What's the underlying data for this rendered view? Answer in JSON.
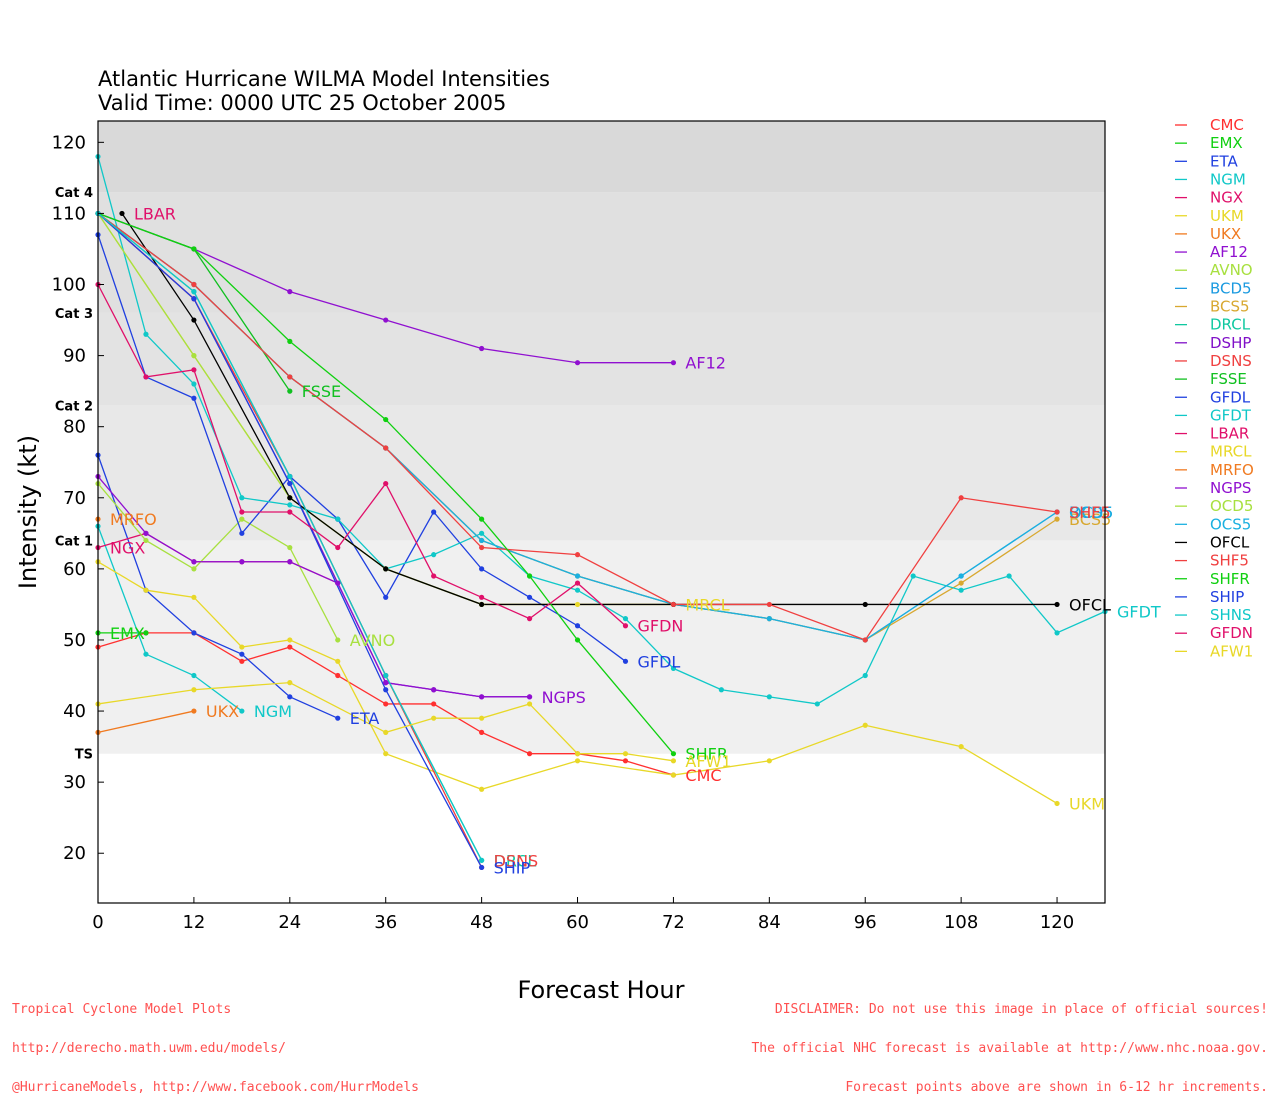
{
  "title": "Atlantic Hurricane WILMA Model Intensities",
  "subtitle": "Valid Time: 0000 UTC 25 October 2005",
  "footer": {
    "left": [
      "Tropical Cyclone Model Plots",
      "http://derecho.math.uwm.edu/models/",
      "@HurricaneModels, http://www.facebook.com/HurrModels"
    ],
    "right": [
      "DISCLAIMER: Do not use this image in place of official sources!",
      "The official NHC forecast is available at http://www.nhc.noaa.gov.",
      "Forecast points above are shown in 6-12 hr increments."
    ]
  },
  "chart_data": {
    "type": "line",
    "xlabel": "Forecast Hour",
    "ylabel": "Intensity (kt)",
    "xlim": [
      0,
      126
    ],
    "ylim": [
      13,
      123
    ],
    "xticks": [
      0,
      12,
      24,
      36,
      48,
      60,
      72,
      84,
      96,
      108,
      120
    ],
    "yticks": [
      20,
      30,
      40,
      50,
      60,
      70,
      80,
      90,
      100,
      110,
      120
    ],
    "category_bands": [
      {
        "label": "TS",
        "from": 34,
        "to": 64,
        "color": "#f0f0f0"
      },
      {
        "label": "Cat 1",
        "from": 64,
        "to": 83,
        "color": "#e8e8e8"
      },
      {
        "label": "Cat 2",
        "from": 83,
        "to": 96,
        "color": "#e3e3e3"
      },
      {
        "label": "Cat 3",
        "from": 96,
        "to": 113,
        "color": "#e0e0e0"
      },
      {
        "label": "Cat 4",
        "from": 113,
        "to": 123,
        "color": "#d9d9d9"
      }
    ],
    "series": [
      {
        "name": "CMC",
        "color": "#ff3030",
        "x": [
          0,
          6,
          12,
          18,
          24,
          30,
          36,
          42,
          48,
          54,
          60,
          66,
          72
        ],
        "y": [
          49,
          51,
          51,
          47,
          49,
          45,
          41,
          41,
          37,
          34,
          34,
          33,
          31
        ],
        "label": "CMC",
        "label_at": [
          72,
          31
        ]
      },
      {
        "name": "EMX",
        "color": "#10d010",
        "x": [
          0,
          6
        ],
        "y": [
          51,
          51
        ],
        "label": "EMX",
        "label_at": [
          0,
          51
        ]
      },
      {
        "name": "ETA",
        "color": "#2040e0",
        "x": [
          0,
          6,
          12,
          18,
          24,
          30
        ],
        "y": [
          76,
          57,
          51,
          48,
          42,
          39
        ],
        "label": "ETA",
        "label_at": [
          30,
          39
        ]
      },
      {
        "name": "NGM",
        "color": "#10c8c8",
        "x": [
          0,
          6,
          12,
          18
        ],
        "y": [
          66,
          48,
          45,
          40
        ],
        "label": "NGM",
        "label_at": [
          18,
          40
        ]
      },
      {
        "name": "NGX",
        "color": "#e0106a",
        "x": [
          0,
          6,
          12,
          18,
          24,
          30
        ],
        "y": [
          63,
          65,
          61,
          61,
          61,
          58
        ],
        "label": "NGX",
        "label_at": [
          0,
          63
        ]
      },
      {
        "name": "UKM",
        "color": "#e8d828",
        "x": [
          0,
          6,
          12,
          18,
          24,
          30,
          36,
          48,
          60,
          72,
          84,
          96,
          108,
          120
        ],
        "y": [
          61,
          57,
          56,
          49,
          50,
          47,
          34,
          29,
          33,
          31,
          33,
          38,
          35,
          27
        ],
        "label": "UKM",
        "label_at": [
          120,
          27
        ]
      },
      {
        "name": "UKX",
        "color": "#f07a20",
        "x": [
          0,
          12
        ],
        "y": [
          37,
          40
        ],
        "label": "UKX",
        "label_at": [
          12,
          40
        ]
      },
      {
        "name": "AF12",
        "color": "#9010d0",
        "x": [
          0,
          12,
          24,
          36,
          48,
          60,
          72
        ],
        "y": [
          110,
          105,
          99,
          95,
          91,
          89,
          89
        ],
        "label": "AF12",
        "label_at": [
          72,
          89
        ]
      },
      {
        "name": "AVNO",
        "color": "#a8e040",
        "x": [
          0,
          6,
          12,
          18,
          24,
          30
        ],
        "y": [
          72,
          64,
          60,
          67,
          63,
          50
        ],
        "label": "AVNO",
        "label_at": [
          30,
          50
        ]
      },
      {
        "name": "BCD5",
        "color": "#1a9ae0",
        "x": [
          0,
          12,
          24,
          36,
          48,
          60,
          72,
          84,
          96,
          108,
          120
        ],
        "y": [
          110,
          100,
          87,
          77,
          64,
          59,
          55,
          53,
          50,
          59,
          68
        ],
        "label": "BCD5",
        "label_at": [
          120,
          68
        ]
      },
      {
        "name": "BCS5",
        "color": "#d8a830",
        "x": [
          0,
          12,
          24,
          36,
          48,
          60,
          72,
          84,
          96,
          108,
          120
        ],
        "y": [
          110,
          100,
          87,
          77,
          64,
          59,
          55,
          53,
          50,
          58,
          67
        ],
        "label": "BCS5",
        "label_at": [
          120,
          67
        ]
      },
      {
        "name": "DRCL",
        "color": "#10c8a0",
        "x": [
          0,
          12,
          24,
          36,
          48
        ],
        "y": [
          110,
          99,
          73,
          45,
          19
        ],
        "label": "DRCL",
        "label_at": [
          48,
          19
        ]
      },
      {
        "name": "DSHP",
        "color": "#8010c8",
        "x": [
          0,
          12,
          24,
          36,
          42,
          48,
          54
        ],
        "y": [
          110,
          98,
          72,
          44,
          43,
          42,
          42
        ],
        "label": "",
        "label_at": null
      },
      {
        "name": "DSNS",
        "color": "#f04040",
        "x": [
          0,
          12,
          24,
          36,
          48
        ],
        "y": [
          110,
          98,
          73,
          45,
          18
        ],
        "label": "DSNS",
        "label_at": [
          48,
          19
        ]
      },
      {
        "name": "FSSE",
        "color": "#10c020",
        "x": [
          0,
          12,
          24
        ],
        "y": [
          110,
          105,
          85
        ],
        "label": "FSSE",
        "label_at": [
          24,
          85
        ]
      },
      {
        "name": "GFDL",
        "color": "#2040e0",
        "x": [
          0,
          6,
          12,
          18,
          24,
          30,
          36,
          42,
          48,
          54,
          60,
          66
        ],
        "y": [
          107,
          87,
          84,
          65,
          73,
          67,
          56,
          68,
          60,
          56,
          52,
          47
        ],
        "label": "GFDL",
        "label_at": [
          66,
          47
        ]
      },
      {
        "name": "GFDT",
        "color": "#10c8c8",
        "x": [
          0,
          6,
          12,
          18,
          24,
          30,
          36,
          42,
          48,
          54,
          60,
          66,
          72,
          78,
          84,
          90,
          96,
          102,
          108,
          114,
          120,
          126
        ],
        "y": [
          118,
          93,
          86,
          70,
          69,
          67,
          60,
          62,
          65,
          59,
          57,
          53,
          46,
          43,
          42,
          41,
          45,
          59,
          57,
          59,
          51,
          54
        ],
        "label": "GFDT",
        "label_at": [
          126,
          54
        ]
      },
      {
        "name": "LBAR",
        "color": "#e0106a",
        "x": [
          0
        ],
        "y": [
          110
        ],
        "label": "LBAR",
        "label_at": [
          3,
          110
        ]
      },
      {
        "name": "MRCL",
        "color": "#e8d828",
        "x": [
          0,
          12,
          24,
          36,
          48,
          60,
          72
        ],
        "y": [
          110,
          90,
          70,
          60,
          55,
          55,
          55
        ],
        "label": "MRCL",
        "label_at": [
          72,
          55
        ]
      },
      {
        "name": "MRFO",
        "color": "#f07a20",
        "x": [
          0
        ],
        "y": [
          67
        ],
        "label": "MRFO",
        "label_at": [
          0,
          67
        ]
      },
      {
        "name": "NGPS",
        "color": "#9010d0",
        "x": [
          0,
          6,
          12,
          18,
          24,
          30,
          36,
          42,
          48,
          54
        ],
        "y": [
          73,
          65,
          61,
          61,
          61,
          58,
          44,
          43,
          42,
          42
        ],
        "label": "NGPS",
        "label_at": [
          54,
          42
        ]
      },
      {
        "name": "OCD5",
        "color": "#a8e040",
        "x": [
          0,
          12,
          24,
          36,
          48
        ],
        "y": [
          110,
          90,
          70,
          60,
          55
        ],
        "label": "",
        "label_at": null
      },
      {
        "name": "OCS5",
        "color": "#1ab0e0",
        "x": [
          0,
          12,
          24,
          36,
          48,
          60,
          72,
          84,
          96,
          108,
          120
        ],
        "y": [
          110,
          100,
          87,
          77,
          64,
          59,
          55,
          53,
          50,
          59,
          68
        ],
        "label": "OCS5",
        "label_at": [
          120,
          68
        ]
      },
      {
        "name": "OFCL",
        "color": "#000000",
        "x": [
          3,
          12,
          24,
          36,
          48,
          72,
          96,
          120
        ],
        "y": [
          110,
          95,
          70,
          60,
          55,
          55,
          55,
          55
        ],
        "label": "OFCL",
        "label_at": [
          120,
          55
        ]
      },
      {
        "name": "SHF5",
        "color": "#f04040",
        "x": [
          0,
          12,
          24,
          36,
          48,
          60,
          72,
          84,
          96,
          108,
          120
        ],
        "y": [
          110,
          100,
          87,
          77,
          63,
          62,
          55,
          55,
          50,
          70,
          68
        ],
        "label": "SHF5",
        "label_at": [
          120,
          68
        ]
      },
      {
        "name": "SHFR",
        "color": "#10d010",
        "x": [
          0,
          12,
          24,
          36,
          48,
          54,
          60,
          72
        ],
        "y": [
          110,
          105,
          92,
          81,
          67,
          59,
          50,
          34
        ],
        "label": "SHFR",
        "label_at": [
          72,
          34
        ]
      },
      {
        "name": "SHIP",
        "color": "#2040e0",
        "x": [
          0,
          12,
          24,
          36,
          48
        ],
        "y": [
          110,
          98,
          72,
          43,
          18
        ],
        "label": "SHIP",
        "label_at": [
          48,
          18
        ]
      },
      {
        "name": "SHNS",
        "color": "#10c8c8",
        "x": [
          0,
          12,
          24,
          36,
          48
        ],
        "y": [
          110,
          99,
          73,
          45,
          19
        ],
        "label": "",
        "label_at": null
      },
      {
        "name": "GFDN",
        "color": "#e0106a",
        "x": [
          0,
          6,
          12,
          18,
          24,
          30,
          36,
          42,
          48,
          54,
          60,
          66
        ],
        "y": [
          100,
          87,
          88,
          68,
          68,
          63,
          72,
          59,
          56,
          53,
          58,
          52
        ],
        "label": "GFDN",
        "label_at": [
          66,
          52
        ]
      },
      {
        "name": "AFW1",
        "color": "#e8d828",
        "x": [
          0,
          12,
          24,
          36,
          42,
          48,
          54,
          60,
          66,
          72
        ],
        "y": [
          41,
          43,
          44,
          37,
          39,
          39,
          41,
          34,
          34,
          33
        ],
        "label": "AFW1",
        "label_at": [
          72,
          33
        ]
      }
    ]
  }
}
